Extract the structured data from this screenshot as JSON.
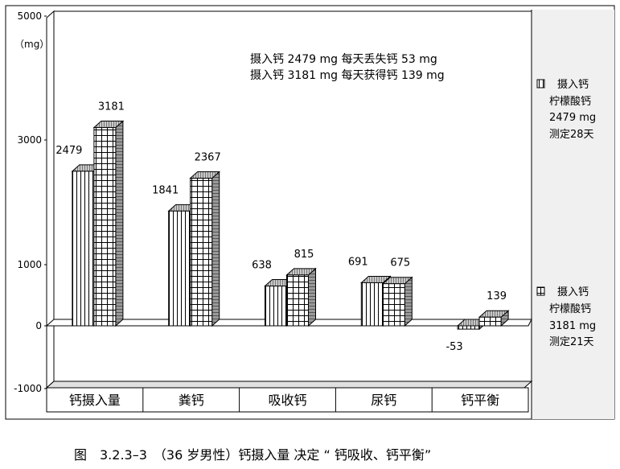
{
  "chart_data": {
    "type": "bar",
    "categories": [
      "钙摄入量",
      "粪钙",
      "吸收钙",
      "尿钙",
      "钙平衡"
    ],
    "series": [
      {
        "name": "摄入钙 柠檬酸钙 2479 mg 测定28天",
        "values": [
          2479,
          1841,
          638,
          691,
          -53
        ],
        "labels": [
          "2479",
          "1841",
          "638",
          "691",
          "-53"
        ],
        "pattern": "vertical-lines"
      },
      {
        "name": "摄入钙 柠檬酸钙 3181 mg 测定21天",
        "values": [
          3181,
          2367,
          815,
          675,
          139
        ],
        "labels": [
          "3181",
          "2367",
          "815",
          "675",
          "139"
        ],
        "pattern": "grid"
      }
    ],
    "ylim": [
      -1000,
      5000
    ],
    "yticks": [
      "5000",
      "3000",
      "1000",
      "0",
      "-1000"
    ],
    "y_tick_values": [
      5000,
      3000,
      1000,
      0,
      -1000
    ],
    "unit_label": "（mg）",
    "annotation_lines": [
      "摄入钙 2479 mg 每天丢失钙 53 mg",
      "摄入钙 3181 mg 每天获得钙 139 mg"
    ],
    "legend": {
      "placement": "right",
      "items": [
        {
          "lines": [
            "摄入钙",
            "柠檬酸钙",
            "2479 mg",
            "测定28天"
          ]
        },
        {
          "lines": [
            "摄入钙",
            "柠檬酸钙",
            "3181 mg",
            "测定21天"
          ]
        }
      ]
    },
    "style": "3d-bar",
    "grid": false
  },
  "caption": "图　3.2.3–3　（36 岁男性）钙摄入量 决定 “ 钙吸收、钙平衡”",
  "colors": {
    "bar_face": "#ffffff",
    "bar_side": "#808080",
    "bar_top": "#c0c0c0",
    "frame": "#000000",
    "floor": "#e8e8e8",
    "right_panel": "#f0f0f0"
  }
}
